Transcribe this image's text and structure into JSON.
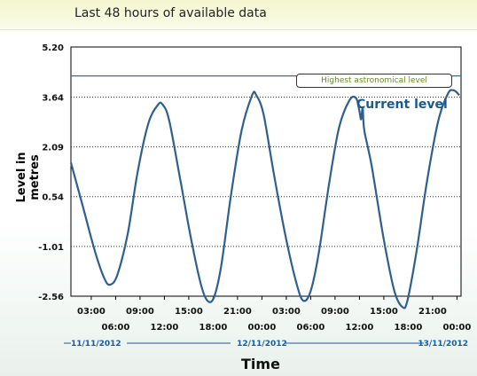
{
  "header": {
    "title": "Last 48 hours of available data"
  },
  "chart_data": {
    "type": "line",
    "ylabel": "Level in metres",
    "xlabel": "Time",
    "ylim": [
      -2.56,
      5.2
    ],
    "yticks": [
      "5.20",
      "3.64",
      "2.09",
      "0.54",
      "-1.01",
      "-2.56"
    ],
    "xlim_hours": [
      0.5,
      48.5
    ],
    "xticks_upper": [
      "03:00",
      "09:00",
      "15:00",
      "21:00",
      "03:00",
      "09:00",
      "15:00",
      "21:00"
    ],
    "xticks_lower": [
      "06:00",
      "12:00",
      "18:00",
      "00:00",
      "06:00",
      "12:00",
      "18:00",
      "00:00"
    ],
    "dates": [
      "11/11/2012",
      "12/11/2012",
      "13/11/2012"
    ],
    "highest_astronomical_level": {
      "label": "Highest astronomical level",
      "value": 4.3
    },
    "current_level_label": "Current level",
    "series": [
      {
        "points": [
          [
            0.5,
            1.6
          ],
          [
            2.0,
            0.2
          ],
          [
            3.5,
            -1.2
          ],
          [
            4.6,
            -2.0
          ],
          [
            5.3,
            -2.2
          ],
          [
            6.2,
            -1.9
          ],
          [
            7.5,
            -0.6
          ],
          [
            8.7,
            1.3
          ],
          [
            10.0,
            2.8
          ],
          [
            11.2,
            3.4
          ],
          [
            11.8,
            3.4
          ],
          [
            12.6,
            2.9
          ],
          [
            14.0,
            1.0
          ],
          [
            15.3,
            -0.8
          ],
          [
            16.5,
            -2.2
          ],
          [
            17.3,
            -2.7
          ],
          [
            18.1,
            -2.6
          ],
          [
            19.0,
            -1.6
          ],
          [
            20.2,
            0.6
          ],
          [
            21.5,
            2.6
          ],
          [
            22.8,
            3.7
          ],
          [
            23.3,
            3.7
          ],
          [
            24.2,
            3.1
          ],
          [
            25.5,
            1.2
          ],
          [
            27.0,
            -0.8
          ],
          [
            28.3,
            -2.2
          ],
          [
            29.1,
            -2.7
          ],
          [
            30.0,
            -2.4
          ],
          [
            31.0,
            -1.2
          ],
          [
            32.3,
            1.0
          ],
          [
            33.5,
            2.7
          ],
          [
            34.8,
            3.55
          ],
          [
            35.6,
            3.6
          ],
          [
            36.0,
            3.2
          ],
          [
            36.2,
            2.95
          ],
          [
            36.4,
            3.3
          ],
          [
            36.6,
            2.6
          ],
          [
            37.5,
            1.5
          ],
          [
            39.0,
            -0.8
          ],
          [
            40.3,
            -2.4
          ],
          [
            41.3,
            -2.9
          ],
          [
            41.9,
            -2.7
          ],
          [
            43.0,
            -1.2
          ],
          [
            44.3,
            1.0
          ],
          [
            45.7,
            2.9
          ],
          [
            46.9,
            3.75
          ],
          [
            47.6,
            3.85
          ],
          [
            48.3,
            3.7
          ]
        ]
      }
    ],
    "grid": true,
    "colors": {
      "line": "#2e5f8e",
      "hat_line": "#3a6e9a"
    }
  }
}
